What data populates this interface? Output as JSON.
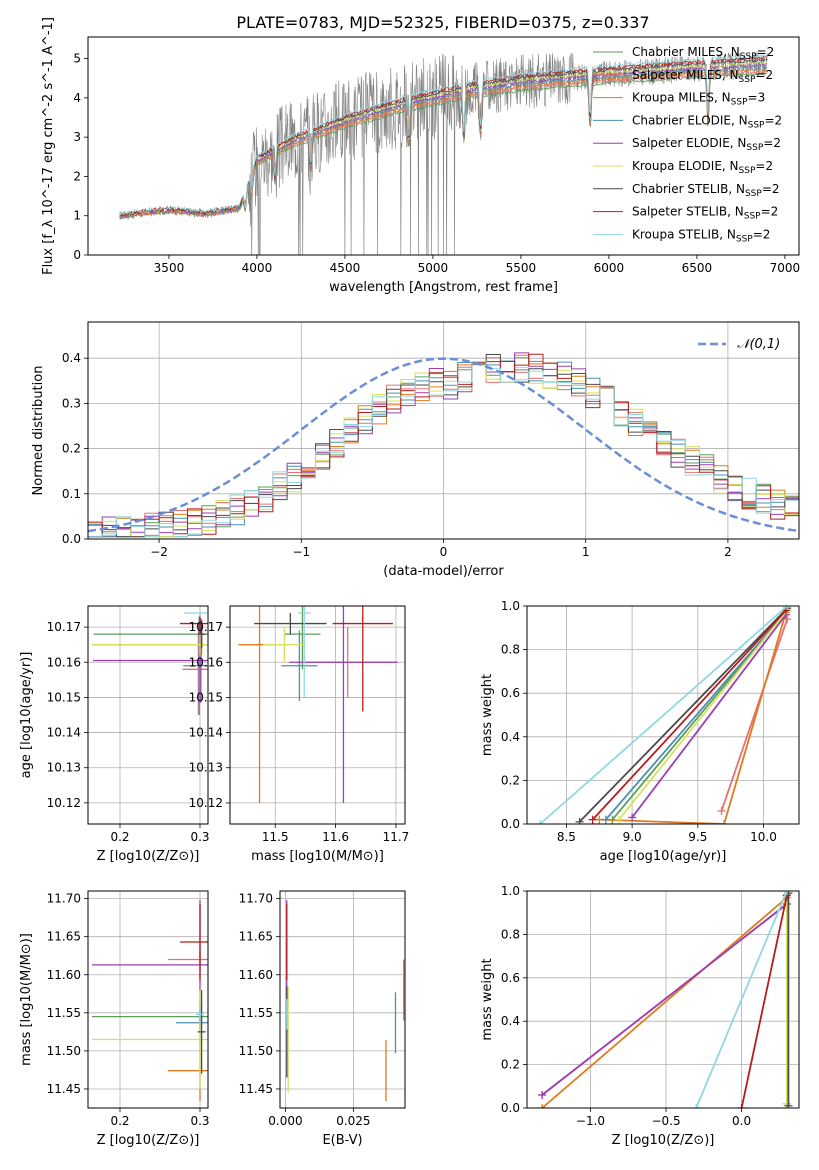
{
  "figure": {
    "title": "PLATE=0783, MJD=52325, FIBERID=0375, z=0.337"
  },
  "models": [
    {
      "name": "Chabrier MILES, N",
      "sub": "SSP",
      "suffix": "=2",
      "color": "#5a9e5a"
    },
    {
      "name": "Salpeter MILES, N",
      "sub": "SSP",
      "suffix": "=2",
      "color": "#e8706e"
    },
    {
      "name": "Kroupa MILES, N",
      "sub": "SSP",
      "suffix": "=3",
      "color": "#e07a1e"
    },
    {
      "name": "Chabrier ELODIE, N",
      "sub": "SSP",
      "suffix": "=2",
      "color": "#4c8fb0"
    },
    {
      "name": "Salpeter ELODIE, N",
      "sub": "SSP",
      "suffix": "=2",
      "color": "#9b3fb5"
    },
    {
      "name": "Kroupa ELODIE, N",
      "sub": "SSP",
      "suffix": "=2",
      "color": "#d8e05a"
    },
    {
      "name": "Chabrier STELIB, N",
      "sub": "SSP",
      "suffix": "=2",
      "color": "#4a4a4a"
    },
    {
      "name": "Salpeter STELIB, N",
      "sub": "SSP",
      "suffix": "=2",
      "color": "#b81c1c"
    },
    {
      "name": "Kroupa STELIB, N",
      "sub": "SSP",
      "suffix": "=2",
      "color": "#8fd8e0"
    }
  ],
  "chart_data": [
    {
      "id": "spectrum",
      "type": "line",
      "xlabel": "wavelength [Angstrom, rest frame]",
      "ylabel": "Flux [f_λ 10^-17 erg cm^-2 s^-1 A^-1]",
      "xlim": [
        3040,
        7080
      ],
      "ylim": [
        0,
        5.55
      ],
      "xticks": [
        3500,
        4000,
        4500,
        5000,
        5500,
        6000,
        6500,
        7000
      ],
      "yticks": [
        0,
        1,
        2,
        3,
        4,
        5
      ],
      "data_color": "#808080",
      "continuum_knots": [
        [
          3220,
          1.0
        ],
        [
          3500,
          1.15
        ],
        [
          3700,
          1.05
        ],
        [
          3900,
          1.2
        ],
        [
          4000,
          2.4
        ],
        [
          4200,
          2.9
        ],
        [
          4500,
          3.4
        ],
        [
          4800,
          3.8
        ],
        [
          5000,
          4.0
        ],
        [
          5200,
          4.2
        ],
        [
          5500,
          4.4
        ],
        [
          6000,
          4.6
        ],
        [
          6500,
          4.75
        ],
        [
          6900,
          4.85
        ]
      ],
      "absorption_lines": [
        3934,
        3969,
        4102,
        4304,
        4861,
        5175,
        5270,
        5893,
        6563
      ]
    },
    {
      "id": "residuals",
      "type": "line",
      "xlabel": "(data-model)/error",
      "ylabel": "Normed distribution",
      "xlim": [
        -2.5,
        2.5
      ],
      "ylim": [
        0,
        0.48
      ],
      "xticks": [
        -2,
        -1,
        0,
        1,
        2
      ],
      "yticks": [
        0.0,
        0.1,
        0.2,
        0.3,
        0.4
      ],
      "normal_curve": {
        "label": "𝒩(0,1)",
        "color": "#6a8fd8",
        "mu": 0,
        "sigma": 1
      },
      "hist_bin_width": 0.1
    },
    {
      "id": "age-vs-Z",
      "type": "scatter",
      "xlabel": "Z [log10(Z/Z⊙)]",
      "ylabel": "age [log10(age/yr)]",
      "xlim": [
        0.16,
        0.31
      ],
      "ylim": [
        10.114,
        10.176
      ],
      "xticks": [
        0.2,
        0.3
      ],
      "yticks": [
        10.12,
        10.13,
        10.14,
        10.15,
        10.16,
        10.17
      ],
      "points": [
        {
          "model": 0,
          "x": 0.302,
          "y": 10.168,
          "xerr": 0.135,
          "yerr": 0.004
        },
        {
          "model": 1,
          "x": 0.298,
          "y": 10.158,
          "xerr": 0.02,
          "yerr": 0.013
        },
        {
          "model": 2,
          "x": 0.302,
          "y": 10.165,
          "xerr": 0.135,
          "yerr": 0.003
        },
        {
          "model": 3,
          "x": 0.299,
          "y": 10.159,
          "xerr": 0.02,
          "yerr": 0.014
        },
        {
          "model": 4,
          "x": 0.301,
          "y": 10.1605,
          "xerr": 0.135,
          "yerr": 0.012
        },
        {
          "model": 5,
          "x": 0.3,
          "y": 10.165,
          "xerr": 0.135,
          "yerr": 0.003
        },
        {
          "model": 6,
          "x": 0.302,
          "y": 10.168,
          "xerr": 0.005,
          "yerr": 0.004
        },
        {
          "model": 7,
          "x": 0.3,
          "y": 10.171,
          "xerr": 0.025,
          "yerr": 0.003
        },
        {
          "model": 8,
          "x": 0.3,
          "y": 10.174,
          "xerr": 0.02,
          "yerr": 0.001
        }
      ]
    },
    {
      "id": "age-vs-mass",
      "type": "scatter",
      "xlabel": "mass [log10(M/M⊙)]",
      "ylabel": "",
      "xlim": [
        11.425,
        11.715
      ],
      "ylim": [
        10.114,
        10.176
      ],
      "xticks": [
        11.5,
        11.6,
        11.7
      ],
      "yticks": [
        10.12,
        10.13,
        10.14,
        10.15,
        10.16,
        10.17
      ],
      "points": [
        {
          "model": 0,
          "x": 11.545,
          "y": 10.168,
          "xerr": 0.03,
          "yerr": 0.01
        },
        {
          "model": 1,
          "x": 11.62,
          "y": 10.16,
          "xerr": 0.08,
          "yerr": 0.01
        },
        {
          "model": 2,
          "x": 11.474,
          "y": 10.165,
          "xerr": 0.035,
          "yerr": 0.045
        },
        {
          "model": 3,
          "x": 11.54,
          "y": 10.159,
          "xerr": 0.03,
          "yerr": 0.01
        },
        {
          "model": 4,
          "x": 11.613,
          "y": 10.16,
          "xerr": 0.09,
          "yerr": 0.04
        },
        {
          "model": 5,
          "x": 11.515,
          "y": 10.165,
          "xerr": 0.035,
          "yerr": 0.005
        },
        {
          "model": 6,
          "x": 11.525,
          "y": 10.171,
          "xerr": 0.06,
          "yerr": 0.003
        },
        {
          "model": 7,
          "x": 11.645,
          "y": 10.171,
          "xerr": 0.05,
          "yerr": 0.025
        },
        {
          "model": 8,
          "x": 11.548,
          "y": 10.174,
          "xerr": 0.01,
          "yerr": 0.024
        }
      ]
    },
    {
      "id": "mass-weight-vs-age",
      "type": "line",
      "xlabel": "age [log10(age/yr)]",
      "ylabel": "mass weight",
      "xlim": [
        8.2,
        10.27
      ],
      "ylim": [
        0,
        1
      ],
      "xticks": [
        8.5,
        9.0,
        9.5,
        10.0
      ],
      "yticks": [
        0.0,
        0.2,
        0.4,
        0.6,
        0.8,
        1.0
      ],
      "series": [
        {
          "model": 0,
          "x": [
            8.85,
            10.18
          ],
          "y": [
            0.02,
            0.98
          ]
        },
        {
          "model": 1,
          "x": [
            9.68,
            10.18
          ],
          "y": [
            0.06,
            0.94
          ]
        },
        {
          "model": 2,
          "x": [
            8.75,
            9.7,
            10.17
          ],
          "y": [
            0.02,
            0.0,
            0.97
          ]
        },
        {
          "model": 3,
          "x": [
            8.8,
            10.18
          ],
          "y": [
            0.02,
            0.98
          ]
        },
        {
          "model": 4,
          "x": [
            9.0,
            10.17
          ],
          "y": [
            0.03,
            0.96
          ]
        },
        {
          "model": 5,
          "x": [
            8.9,
            10.18
          ],
          "y": [
            0.02,
            0.98
          ]
        },
        {
          "model": 6,
          "x": [
            8.6,
            10.18
          ],
          "y": [
            0.01,
            0.99
          ]
        },
        {
          "model": 7,
          "x": [
            8.7,
            10.17
          ],
          "y": [
            0.02,
            0.98
          ]
        },
        {
          "model": 8,
          "x": [
            8.3,
            10.18
          ],
          "y": [
            0.0,
            1.0
          ]
        }
      ]
    },
    {
      "id": "mass-vs-Z",
      "type": "scatter",
      "xlabel": "Z [log10(Z/Z⊙)]",
      "ylabel": "mass [log10(M/M⊙)]",
      "xlim": [
        0.16,
        0.31
      ],
      "ylim": [
        11.425,
        11.71
      ],
      "xticks": [
        0.2,
        0.3
      ],
      "yticks": [
        11.45,
        11.5,
        11.55,
        11.6,
        11.65,
        11.7
      ],
      "points": [
        {
          "model": 0,
          "x": 0.3,
          "y": 11.545,
          "xerr": 0.135,
          "yerr": 0.01
        },
        {
          "model": 1,
          "x": 0.3,
          "y": 11.62,
          "xerr": 0.04,
          "yerr": 0.01
        },
        {
          "model": 2,
          "x": 0.3,
          "y": 11.474,
          "xerr": 0.04,
          "yerr": 0.04
        },
        {
          "model": 3,
          "x": 0.3,
          "y": 11.537,
          "xerr": 0.03,
          "yerr": 0.025
        },
        {
          "model": 4,
          "x": 0.3,
          "y": 11.613,
          "xerr": 0.135,
          "yerr": 0.085
        },
        {
          "model": 5,
          "x": 0.3,
          "y": 11.515,
          "xerr": 0.135,
          "yerr": 0.065
        },
        {
          "model": 6,
          "x": 0.302,
          "y": 11.525,
          "xerr": 0.005,
          "yerr": 0.055
        },
        {
          "model": 7,
          "x": 0.3,
          "y": 11.643,
          "xerr": 0.025,
          "yerr": 0.05
        },
        {
          "model": 8,
          "x": 0.3,
          "y": 11.548,
          "xerr": 0.005,
          "yerr": 0.01
        }
      ]
    },
    {
      "id": "mass-vs-EBV",
      "type": "scatter",
      "xlabel": "E(B-V)",
      "ylabel": "",
      "xlim": [
        -0.002,
        0.044
      ],
      "ylim": [
        11.425,
        11.71
      ],
      "xticks": [
        0.0,
        0.025
      ],
      "xticklabels": [
        "0.000",
        "0.025"
      ],
      "yticks": [
        11.45,
        11.5,
        11.55,
        11.6,
        11.65,
        11.7
      ],
      "points": [
        {
          "model": 0,
          "x": 0.0005,
          "y": 11.545,
          "yerr": 0.02
        },
        {
          "model": 1,
          "x": 0.0005,
          "y": 11.62,
          "yerr": 0.02
        },
        {
          "model": 2,
          "x": 0.037,
          "y": 11.474,
          "yerr": 0.04
        },
        {
          "model": 3,
          "x": 0.0405,
          "y": 11.537,
          "yerr": 0.04
        },
        {
          "model": 4,
          "x": 0.0005,
          "y": 11.613,
          "yerr": 0.085
        },
        {
          "model": 5,
          "x": 0.001,
          "y": 11.515,
          "yerr": 0.07
        },
        {
          "model": 6,
          "x": 0.0005,
          "y": 11.525,
          "yerr": 0.06
        },
        {
          "model": 7,
          "x": 0.0005,
          "y": 11.643,
          "yerr": 0.05
        },
        {
          "model": 8,
          "x": 0.0005,
          "y": 11.548,
          "yerr": 0.02
        },
        {
          "model": 1,
          "x": 0.0435,
          "y": 11.58,
          "yerr": 0.04
        }
      ]
    },
    {
      "id": "mass-weight-vs-Z",
      "type": "line",
      "xlabel": "Z [log10(Z/Z⊙)]",
      "ylabel": "mass weight",
      "xlim": [
        -1.42,
        0.38
      ],
      "ylim": [
        0,
        1
      ],
      "xticks": [
        -1.0,
        -0.5,
        0.0
      ],
      "yticks": [
        0.0,
        0.2,
        0.4,
        0.6,
        0.8,
        1.0
      ],
      "series": [
        {
          "model": 0,
          "x": [
            0.3,
            0.3
          ],
          "y": [
            0.02,
            0.98
          ]
        },
        {
          "model": 1,
          "x": [
            -1.32,
            0.3
          ],
          "y": [
            0.06,
            0.94
          ]
        },
        {
          "model": 2,
          "x": [
            -1.32,
            0.3
          ],
          "y": [
            0.0,
            0.97
          ]
        },
        {
          "model": 3,
          "x": [
            0.3,
            0.3
          ],
          "y": [
            0.02,
            0.98
          ]
        },
        {
          "model": 4,
          "x": [
            -1.32,
            0.3
          ],
          "y": [
            0.06,
            0.94
          ]
        },
        {
          "model": 5,
          "x": [
            0.3,
            0.3
          ],
          "y": [
            0.02,
            0.98
          ]
        },
        {
          "model": 6,
          "x": [
            0.31,
            0.31
          ],
          "y": [
            0.01,
            0.99
          ]
        },
        {
          "model": 7,
          "x": [
            0.0,
            0.3
          ],
          "y": [
            0.0,
            0.98
          ]
        },
        {
          "model": 8,
          "x": [
            -0.3,
            0.3
          ],
          "y": [
            0.0,
            1.0
          ]
        }
      ]
    }
  ]
}
